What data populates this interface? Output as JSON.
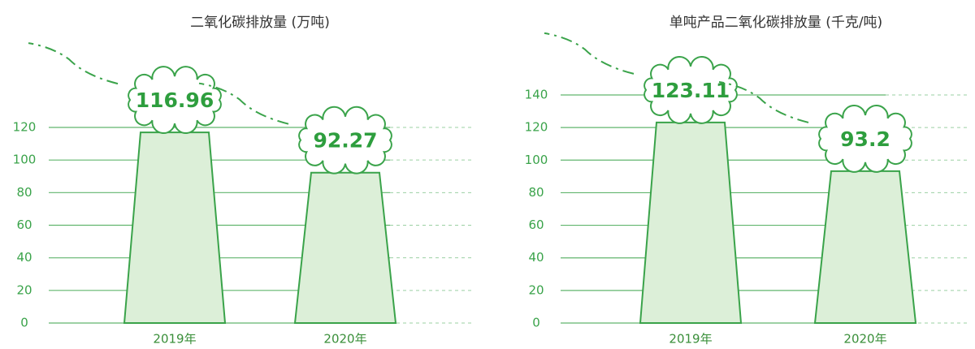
{
  "chart_data": [
    {
      "type": "bar",
      "title": "二氧化碳排放量 (万吨)",
      "categories": [
        "2019年",
        "2020年"
      ],
      "values": [
        116.96,
        92.27
      ],
      "color": "#dcefd8",
      "ylim": [
        0,
        120
      ],
      "yticks": [
        0,
        20,
        40,
        60,
        80,
        100,
        120
      ],
      "grid": true
    },
    {
      "type": "bar",
      "title": "单吨产品二氧化碳排放量 (千克/吨)",
      "categories": [
        "2019年",
        "2020年"
      ],
      "values": [
        123.11,
        93.2
      ],
      "color": "#dcefd8",
      "ylim": [
        0,
        140
      ],
      "yticks": [
        0,
        20,
        40,
        60,
        80,
        100,
        120,
        140
      ],
      "grid": true
    }
  ]
}
